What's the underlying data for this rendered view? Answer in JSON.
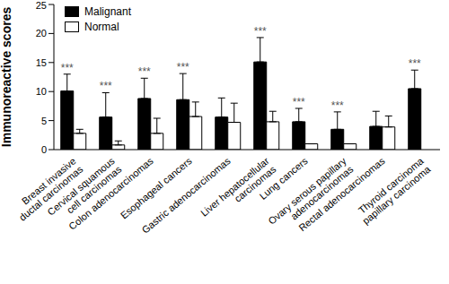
{
  "chart_data": {
    "type": "bar",
    "y_label": "Immunoreactive scores",
    "categories": [
      "Breast invasive ductal carcinomas",
      "Cervical squamous cell carcinomas",
      "Colon adenocarcinomas",
      "Esophageal cancers",
      "Gastric adenocarcinomas",
      "Liver hepatocellular carcinomas",
      "Lung cancers",
      "Ovary serous papillary adenocarcinomas",
      "Rectal adenocarcinomas",
      "Thyroid carcinoma papillary carcinoma"
    ],
    "series": [
      {
        "name": "Malignant",
        "color": "#000000",
        "values": [
          10.1,
          5.6,
          8.8,
          8.6,
          5.6,
          15.1,
          4.8,
          3.5,
          4.0,
          10.5
        ],
        "errors": [
          2.9,
          4.2,
          3.5,
          4.5,
          3.3,
          4.2,
          2.3,
          3.0,
          2.6,
          3.2
        ]
      },
      {
        "name": "Normal",
        "color": "#ffffff",
        "values": [
          2.8,
          0.8,
          2.8,
          5.7,
          4.7,
          4.8,
          1.0,
          1.0,
          3.9,
          null
        ],
        "errors": [
          0.7,
          0.7,
          2.6,
          2.5,
          3.3,
          1.8,
          0,
          0,
          1.9,
          null
        ]
      }
    ],
    "annotations": [
      "***",
      "***",
      "***",
      "***",
      null,
      "***",
      "***",
      "***",
      null,
      "***"
    ],
    "ylim": [
      0,
      25
    ],
    "yticks": [
      0,
      5,
      10,
      15,
      20,
      25
    ],
    "grid": false,
    "legend": "top-left"
  }
}
